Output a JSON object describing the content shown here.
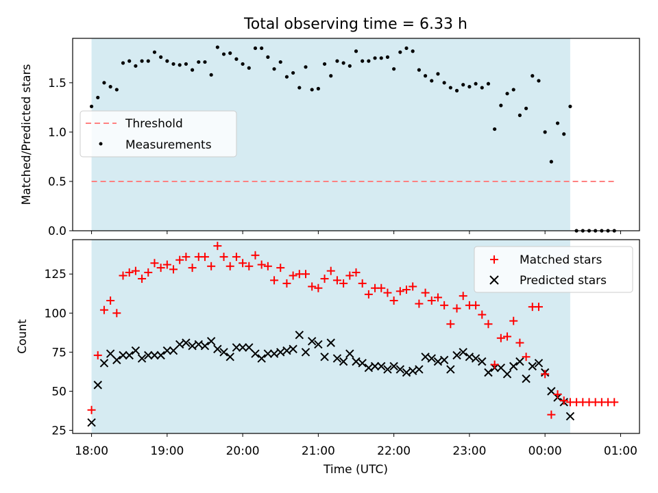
{
  "title": "Total observing time = 6.33 h",
  "shade_color": "#add8e6",
  "chart_data": [
    {
      "type": "scatter",
      "ylabel": "Matched/Predicted stars",
      "xlabel": "",
      "xlim": [
        "17:45",
        "01:15"
      ],
      "ylim": [
        0,
        1.95
      ],
      "yticks": [
        0.0,
        0.5,
        1.0,
        1.5
      ],
      "ytick_labels": [
        "0.0",
        "0.5",
        "1.0",
        "1.5"
      ],
      "shaded_span": [
        "18:00",
        "00:20"
      ],
      "legend_position": "center-left",
      "threshold": {
        "name": "Threshold",
        "y": 0.5,
        "x_range": [
          "18:00",
          "00:55"
        ],
        "color": "#ff8080",
        "style": "dashed"
      },
      "series": [
        {
          "name": "Measurements",
          "color": "#000000",
          "marker": "dot",
          "x": [
            "18:00",
            "18:05",
            "18:10",
            "18:15",
            "18:20",
            "18:25",
            "18:30",
            "18:35",
            "18:40",
            "18:45",
            "18:50",
            "18:55",
            "19:00",
            "19:05",
            "19:10",
            "19:15",
            "19:20",
            "19:25",
            "19:30",
            "19:35",
            "19:40",
            "19:45",
            "19:50",
            "19:55",
            "20:00",
            "20:05",
            "20:10",
            "20:15",
            "20:20",
            "20:25",
            "20:30",
            "20:35",
            "20:40",
            "20:45",
            "20:50",
            "20:55",
            "21:00",
            "21:05",
            "21:10",
            "21:15",
            "21:20",
            "21:25",
            "21:30",
            "21:35",
            "21:40",
            "21:45",
            "21:50",
            "21:55",
            "22:00",
            "22:05",
            "22:10",
            "22:15",
            "22:20",
            "22:25",
            "22:30",
            "22:35",
            "22:40",
            "22:45",
            "22:50",
            "22:55",
            "23:00",
            "23:05",
            "23:10",
            "23:15",
            "23:20",
            "23:25",
            "23:30",
            "23:35",
            "23:40",
            "23:45",
            "23:50",
            "23:55",
            "00:00",
            "00:05",
            "00:10",
            "00:15",
            "00:20",
            "00:25",
            "00:30",
            "00:35",
            "00:40",
            "00:45",
            "00:50",
            "00:55"
          ],
          "y": [
            1.26,
            1.35,
            1.5,
            1.46,
            1.43,
            1.7,
            1.72,
            1.67,
            1.72,
            1.72,
            1.81,
            1.76,
            1.72,
            1.69,
            1.68,
            1.69,
            1.63,
            1.71,
            1.71,
            1.58,
            1.86,
            1.79,
            1.8,
            1.74,
            1.69,
            1.65,
            1.85,
            1.85,
            1.76,
            1.64,
            1.71,
            1.56,
            1.6,
            1.45,
            1.66,
            1.43,
            1.44,
            1.69,
            1.57,
            1.72,
            1.7,
            1.67,
            1.82,
            1.72,
            1.72,
            1.75,
            1.75,
            1.76,
            1.64,
            1.81,
            1.85,
            1.82,
            1.63,
            1.57,
            1.52,
            1.59,
            1.5,
            1.45,
            1.42,
            1.48,
            1.46,
            1.49,
            1.45,
            1.49,
            1.03,
            1.27,
            1.39,
            1.43,
            1.17,
            1.24,
            1.57,
            1.52,
            1.0,
            0.7,
            1.09,
            0.98,
            1.26,
            0.0,
            0.0,
            0.0,
            0.0,
            0.0,
            0.0,
            0.0
          ]
        }
      ]
    },
    {
      "type": "scatter",
      "ylabel": "Count",
      "xlabel": "Time (UTC)",
      "xlim": [
        "17:45",
        "01:15"
      ],
      "ylim": [
        23,
        147
      ],
      "yticks": [
        25,
        50,
        75,
        100,
        125
      ],
      "ytick_labels": [
        "25",
        "50",
        "75",
        "100",
        "125"
      ],
      "xticks": [
        "18:00",
        "19:00",
        "20:00",
        "21:00",
        "22:00",
        "23:00",
        "00:00",
        "01:00"
      ],
      "shaded_span": [
        "18:00",
        "00:20"
      ],
      "legend_position": "top-right",
      "series": [
        {
          "name": "Matched stars",
          "color": "#ff0000",
          "marker": "plus",
          "x": [
            "18:00",
            "18:05",
            "18:10",
            "18:15",
            "18:20",
            "18:25",
            "18:30",
            "18:35",
            "18:40",
            "18:45",
            "18:50",
            "18:55",
            "19:00",
            "19:05",
            "19:10",
            "19:15",
            "19:20",
            "19:25",
            "19:30",
            "19:35",
            "19:40",
            "19:45",
            "19:50",
            "19:55",
            "20:00",
            "20:05",
            "20:10",
            "20:15",
            "20:20",
            "20:25",
            "20:30",
            "20:35",
            "20:40",
            "20:45",
            "20:50",
            "20:55",
            "21:00",
            "21:05",
            "21:10",
            "21:15",
            "21:20",
            "21:25",
            "21:30",
            "21:35",
            "21:40",
            "21:45",
            "21:50",
            "21:55",
            "22:00",
            "22:05",
            "22:10",
            "22:15",
            "22:20",
            "22:25",
            "22:30",
            "22:35",
            "22:40",
            "22:45",
            "22:50",
            "22:55",
            "23:00",
            "23:05",
            "23:10",
            "23:15",
            "23:20",
            "23:25",
            "23:30",
            "23:35",
            "23:40",
            "23:45",
            "23:50",
            "23:55",
            "00:00",
            "00:05",
            "00:10",
            "00:15",
            "00:20",
            "00:25",
            "00:30",
            "00:35",
            "00:40",
            "00:45",
            "00:50",
            "00:55"
          ],
          "y": [
            38,
            73,
            102,
            108,
            100,
            124,
            126,
            127,
            122,
            126,
            132,
            129,
            131,
            128,
            134,
            136,
            129,
            136,
            136,
            130,
            143,
            136,
            130,
            136,
            132,
            130,
            137,
            131,
            130,
            121,
            129,
            119,
            124,
            125,
            125,
            117,
            116,
            122,
            127,
            121,
            119,
            124,
            126,
            119,
            112,
            116,
            116,
            113,
            108,
            114,
            115,
            117,
            106,
            113,
            108,
            110,
            105,
            93,
            103,
            111,
            105,
            105,
            99,
            93,
            67,
            84,
            85,
            95,
            81,
            72,
            104,
            104,
            61,
            35,
            48,
            44,
            43,
            43,
            43,
            43,
            43,
            43,
            43,
            43
          ]
        },
        {
          "name": "Predicted stars",
          "color": "#000000",
          "marker": "x",
          "x": [
            "18:00",
            "18:05",
            "18:10",
            "18:15",
            "18:20",
            "18:25",
            "18:30",
            "18:35",
            "18:40",
            "18:45",
            "18:50",
            "18:55",
            "19:00",
            "19:05",
            "19:10",
            "19:15",
            "19:20",
            "19:25",
            "19:30",
            "19:35",
            "19:40",
            "19:45",
            "19:50",
            "19:55",
            "20:00",
            "20:05",
            "20:10",
            "20:15",
            "20:20",
            "20:25",
            "20:30",
            "20:35",
            "20:40",
            "20:45",
            "20:50",
            "20:55",
            "21:00",
            "21:05",
            "21:10",
            "21:15",
            "21:20",
            "21:25",
            "21:30",
            "21:35",
            "21:40",
            "21:45",
            "21:50",
            "21:55",
            "22:00",
            "22:05",
            "22:10",
            "22:15",
            "22:20",
            "22:25",
            "22:30",
            "22:35",
            "22:40",
            "22:45",
            "22:50",
            "22:55",
            "23:00",
            "23:05",
            "23:10",
            "23:15",
            "23:20",
            "23:25",
            "23:30",
            "23:35",
            "23:40",
            "23:45",
            "23:50",
            "23:55",
            "00:00",
            "00:05",
            "00:10",
            "00:15",
            "00:20"
          ],
          "y": [
            30,
            54,
            68,
            74,
            70,
            73,
            73,
            76,
            71,
            73,
            73,
            73,
            76,
            76,
            80,
            81,
            79,
            80,
            79,
            82,
            77,
            75,
            72,
            78,
            78,
            78,
            74,
            71,
            74,
            74,
            75,
            76,
            77,
            86,
            75,
            82,
            80,
            72,
            81,
            71,
            69,
            74,
            69,
            68,
            65,
            66,
            66,
            64,
            66,
            64,
            62,
            63,
            64,
            72,
            71,
            69,
            70,
            64,
            73,
            75,
            72,
            71,
            69,
            62,
            65,
            65,
            61,
            66,
            69,
            58,
            66,
            68,
            62,
            50,
            46,
            43,
            34
          ]
        }
      ]
    }
  ]
}
